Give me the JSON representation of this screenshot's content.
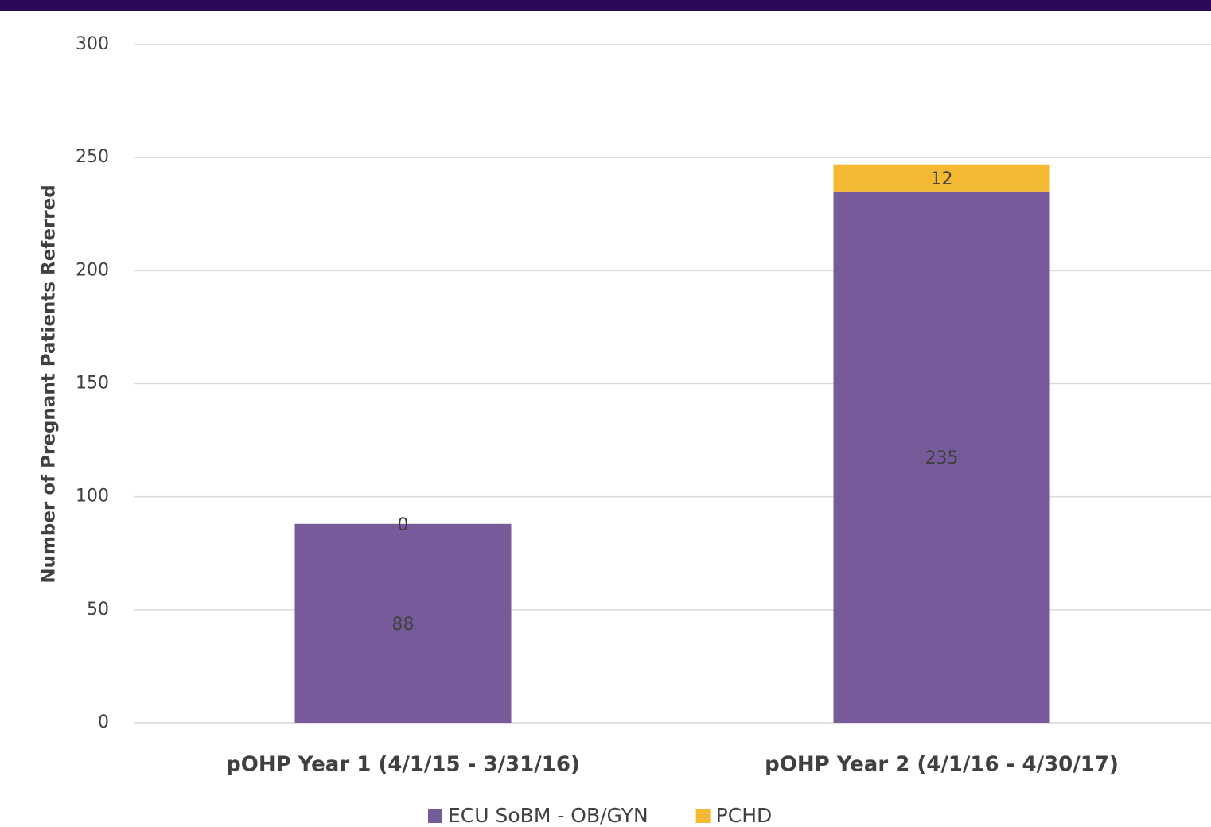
{
  "chart_data": {
    "type": "stacked_bar",
    "y_label": "Number of Pregnant Patients Referred",
    "categories": [
      "pOHP Year 1 (4/1/15 - 3/31/16)",
      "pOHP Year 2 (4/1/16 - 4/30/17)"
    ],
    "series": [
      {
        "name": "ECU SoBM - OB/GYN",
        "color": "#775a99",
        "values": [
          88,
          235
        ]
      },
      {
        "name": "PCHD",
        "color": "#f4b933",
        "values": [
          0,
          12
        ]
      }
    ],
    "ylim": [
      0,
      300
    ],
    "yticks": [
      0,
      50,
      100,
      150,
      200,
      250,
      300
    ],
    "grid": true,
    "legend": "bottom"
  }
}
